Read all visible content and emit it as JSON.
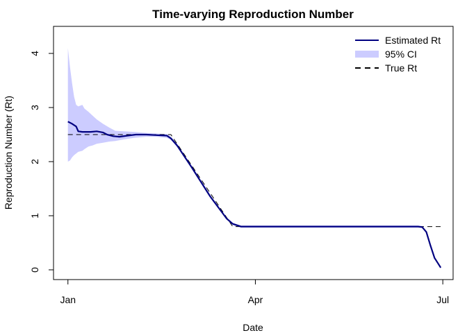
{
  "chart_data": {
    "type": "line",
    "title": "Time-varying Reproduction Number",
    "xlabel": "Date",
    "ylabel": "Reproduction Number (Rt)",
    "x_ticks": [
      {
        "date": "2020-01-01",
        "label": "Jan"
      },
      {
        "date": "2020-04-01",
        "label": "Apr"
      },
      {
        "date": "2020-07-01",
        "label": "Jul"
      }
    ],
    "xlim": [
      "2019-12-25",
      "2020-07-06"
    ],
    "y_ticks": [
      0,
      1,
      2,
      3,
      4
    ],
    "ylim": [
      -0.18,
      4.5
    ],
    "grid": false,
    "legend_position": "top-right",
    "colors": {
      "estimate": "#000080",
      "ci": "#ccccff",
      "true": "#000000"
    },
    "series": [
      {
        "name": "Estimated Rt",
        "style": "solid",
        "points": [
          [
            "2020-01-01",
            2.74
          ],
          [
            "2020-01-03",
            2.7
          ],
          [
            "2020-01-05",
            2.65
          ],
          [
            "2020-01-06",
            2.56
          ],
          [
            "2020-01-08",
            2.55
          ],
          [
            "2020-01-12",
            2.55
          ],
          [
            "2020-01-15",
            2.56
          ],
          [
            "2020-01-18",
            2.54
          ],
          [
            "2020-01-20",
            2.5
          ],
          [
            "2020-01-23",
            2.47
          ],
          [
            "2020-01-26",
            2.46
          ],
          [
            "2020-01-30",
            2.48
          ],
          [
            "2020-02-03",
            2.5
          ],
          [
            "2020-02-08",
            2.5
          ],
          [
            "2020-02-13",
            2.49
          ],
          [
            "2020-02-18",
            2.48
          ],
          [
            "2020-02-20",
            2.43
          ],
          [
            "2020-02-23",
            2.3
          ],
          [
            "2020-03-01",
            1.9
          ],
          [
            "2020-03-10",
            1.36
          ],
          [
            "2020-03-18",
            0.95
          ],
          [
            "2020-03-21",
            0.85
          ],
          [
            "2020-03-25",
            0.8
          ],
          [
            "2020-04-01",
            0.8
          ],
          [
            "2020-05-01",
            0.8
          ],
          [
            "2020-06-01",
            0.8
          ],
          [
            "2020-06-19",
            0.8
          ],
          [
            "2020-06-21",
            0.79
          ],
          [
            "2020-06-23",
            0.7
          ],
          [
            "2020-06-25",
            0.45
          ],
          [
            "2020-06-27",
            0.22
          ],
          [
            "2020-06-29",
            0.1
          ],
          [
            "2020-06-30",
            0.04
          ]
        ]
      },
      {
        "name": "95% CI",
        "style": "band",
        "band": [
          [
            "2020-01-01",
            2.0,
            4.1
          ],
          [
            "2020-01-02",
            2.02,
            3.75
          ],
          [
            "2020-01-03",
            2.08,
            3.45
          ],
          [
            "2020-01-04",
            2.12,
            3.2
          ],
          [
            "2020-01-05",
            2.15,
            3.05
          ],
          [
            "2020-01-06",
            2.18,
            3.02
          ],
          [
            "2020-01-08",
            2.2,
            3.05
          ],
          [
            "2020-01-09",
            2.23,
            2.98
          ],
          [
            "2020-01-11",
            2.28,
            2.92
          ],
          [
            "2020-01-13",
            2.3,
            2.85
          ],
          [
            "2020-01-15",
            2.33,
            2.78
          ],
          [
            "2020-01-18",
            2.35,
            2.7
          ],
          [
            "2020-01-21",
            2.37,
            2.63
          ],
          [
            "2020-01-24",
            2.38,
            2.57
          ],
          [
            "2020-01-28",
            2.41,
            2.56
          ],
          [
            "2020-02-02",
            2.44,
            2.55
          ],
          [
            "2020-02-08",
            2.46,
            2.53
          ],
          [
            "2020-02-13",
            2.46,
            2.52
          ],
          [
            "2020-02-18",
            2.44,
            2.51
          ],
          [
            "2020-02-20",
            2.4,
            2.46
          ],
          [
            "2020-02-23",
            2.27,
            2.33
          ],
          [
            "2020-03-01",
            1.87,
            1.93
          ],
          [
            "2020-03-10",
            1.33,
            1.39
          ],
          [
            "2020-03-18",
            0.93,
            0.97
          ],
          [
            "2020-03-21",
            0.83,
            0.87
          ],
          [
            "2020-03-25",
            0.78,
            0.82
          ],
          [
            "2020-06-19",
            0.78,
            0.82
          ],
          [
            "2020-06-21",
            0.77,
            0.81
          ],
          [
            "2020-06-23",
            0.68,
            0.72
          ],
          [
            "2020-06-25",
            0.43,
            0.47
          ],
          [
            "2020-06-27",
            0.2,
            0.24
          ],
          [
            "2020-06-29",
            0.08,
            0.12
          ],
          [
            "2020-06-30",
            0.02,
            0.06
          ]
        ]
      },
      {
        "name": "True Rt",
        "style": "dashed",
        "points": [
          [
            "2020-01-01",
            2.5
          ],
          [
            "2020-02-20",
            2.5
          ],
          [
            "2020-03-21",
            0.8
          ],
          [
            "2020-06-30",
            0.8
          ]
        ]
      }
    ]
  }
}
